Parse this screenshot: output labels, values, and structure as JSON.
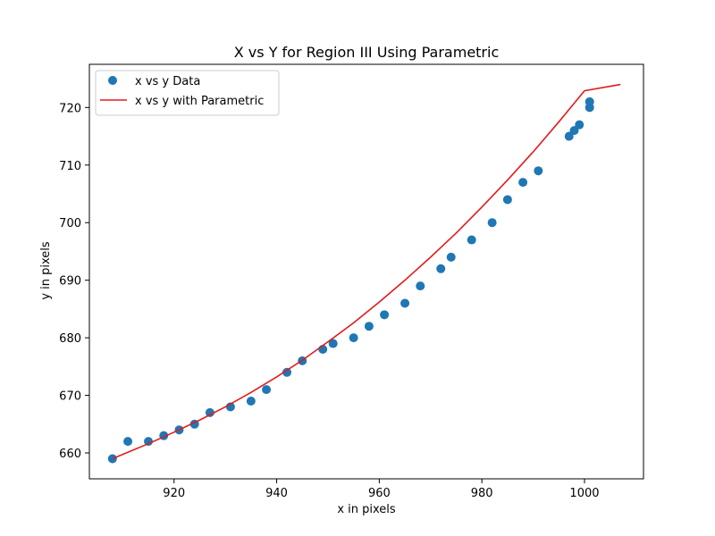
{
  "chart_data": {
    "type": "scatter",
    "title": "X vs Y for Region III Using Parametric",
    "xlabel": "x in pixels",
    "ylabel": "y in pixels",
    "xlim": [
      903.5,
      1011.5
    ],
    "ylim": [
      655.5,
      727.5
    ],
    "xticks": [
      920,
      940,
      960,
      980,
      1000
    ],
    "yticks": [
      660,
      670,
      680,
      690,
      700,
      710,
      720
    ],
    "grid": false,
    "legend_placement": "upper-left",
    "colors": {
      "scatter": "#1f77b4",
      "fit": "#e31a1c"
    },
    "series": [
      {
        "name": "x vs y Data",
        "kind": "scatter",
        "points": [
          [
            908,
            659
          ],
          [
            911,
            662
          ],
          [
            915,
            662
          ],
          [
            918,
            663
          ],
          [
            921,
            664
          ],
          [
            924,
            665
          ],
          [
            927,
            667
          ],
          [
            931,
            668
          ],
          [
            935,
            669
          ],
          [
            938,
            671
          ],
          [
            942,
            674
          ],
          [
            945,
            676
          ],
          [
            949,
            678
          ],
          [
            951,
            679
          ],
          [
            955,
            680
          ],
          [
            958,
            682
          ],
          [
            961,
            684
          ],
          [
            965,
            686
          ],
          [
            968,
            689
          ],
          [
            972,
            692
          ],
          [
            974,
            694
          ],
          [
            978,
            697
          ],
          [
            982,
            700
          ],
          [
            985,
            704
          ],
          [
            988,
            707
          ],
          [
            991,
            709
          ],
          [
            997,
            715
          ],
          [
            998,
            716
          ],
          [
            999,
            717
          ],
          [
            1001,
            720
          ],
          [
            1001,
            721
          ]
        ]
      },
      {
        "name": "x vs y with Parametric",
        "kind": "line",
        "points": [
          [
            908,
            659.0
          ],
          [
            915,
            661.6
          ],
          [
            920,
            663.6
          ],
          [
            925,
            665.7
          ],
          [
            930,
            668.0
          ],
          [
            935,
            670.5
          ],
          [
            940,
            673.2
          ],
          [
            945,
            676.1
          ],
          [
            950,
            679.3
          ],
          [
            955,
            682.6
          ],
          [
            960,
            686.2
          ],
          [
            965,
            690.0
          ],
          [
            970,
            694.0
          ],
          [
            975,
            698.2
          ],
          [
            980,
            702.7
          ],
          [
            985,
            707.4
          ],
          [
            990,
            712.3
          ],
          [
            995,
            717.5
          ],
          [
            1000,
            722.9
          ],
          [
            1007,
            724.0
          ]
        ]
      }
    ]
  }
}
